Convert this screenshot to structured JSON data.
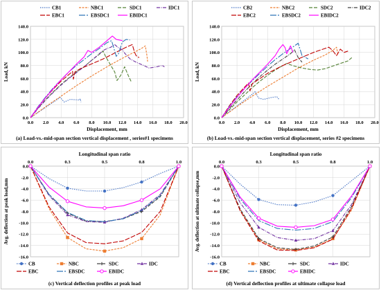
{
  "chart_data": [
    {
      "type": "line",
      "caption": "(a) Load-vs.-mid-span section vertical displacement , series#1 specimens",
      "xlabel": "Displacement, mm",
      "ylabel": "Load, kN",
      "xlim": [
        0.0,
        20.0
      ],
      "ylim": [
        0.0,
        140.0
      ],
      "xticks": [
        "0.0",
        "2.0",
        "4.0",
        "6.0",
        "8.0",
        "10.0",
        "12.0",
        "14.0",
        "16.0",
        "18.0",
        "20.0"
      ],
      "yticks": [
        "0.0",
        "20.0",
        "40.0",
        "60.0",
        "80.0",
        "100.0",
        "120.0",
        "140.0"
      ],
      "grid": true,
      "legend_position": "top",
      "series": [
        {
          "name": "CB1",
          "color": "#4472c4",
          "dash": "1.5,1.5",
          "x": [
            0,
            1,
            2,
            3,
            3.9,
            4.4,
            5.2,
            6.4,
            6.5,
            6.6
          ],
          "y": [
            0,
            8,
            16,
            24,
            31,
            24,
            28,
            27,
            29,
            24
          ]
        },
        {
          "name": "NBC1",
          "color": "#ed7d31",
          "dash": "3,1.5",
          "x": [
            0,
            2,
            4,
            6,
            8,
            10,
            12,
            13.5,
            14.5,
            15,
            15.2,
            15.3
          ],
          "y": [
            0,
            17,
            33,
            49,
            64,
            78,
            91,
            100,
            106,
            110,
            96,
            86
          ]
        },
        {
          "name": "SDC1",
          "color": "#548235",
          "dash": "5,2",
          "x": [
            0,
            1,
            2,
            3,
            4,
            5,
            6,
            7,
            8,
            9,
            9.5,
            9.8,
            10,
            10.5,
            11,
            11.3,
            11.8,
            12.3,
            12.8,
            13.2
          ],
          "y": [
            0,
            15,
            28,
            40,
            51,
            61,
            70,
            78,
            88,
            97,
            102,
            94,
            90,
            80,
            70,
            57,
            65,
            78,
            64,
            54
          ]
        },
        {
          "name": "IDC1",
          "color": "#7030a0",
          "dash": "5,1.5,1,1.5",
          "x": [
            0,
            1,
            2,
            3,
            4,
            5,
            6,
            7,
            8,
            9,
            9.5,
            10,
            10.5,
            11,
            11.5,
            12,
            12.3,
            13,
            13.8,
            14.2,
            14.8,
            15.5,
            16.5,
            17.2,
            17.5
          ],
          "y": [
            0,
            14,
            27,
            39,
            50,
            60,
            69,
            78,
            88,
            98,
            103,
            106,
            108,
            112,
            107,
            104,
            99,
            90,
            85,
            83,
            80,
            76,
            78,
            80,
            78
          ]
        },
        {
          "name": "EBC1",
          "color": "#c00000",
          "dash": "7,2",
          "x": [
            0,
            1,
            2,
            3,
            4,
            5,
            5.5,
            5.6,
            5.8,
            6.5,
            7.5,
            8.5,
            9.5,
            10.5,
            11.5,
            12.5,
            13.3,
            13.6,
            13.8,
            14.2
          ],
          "y": [
            0,
            16,
            31,
            44,
            56,
            66,
            71,
            59,
            70,
            75,
            80,
            85,
            90,
            96,
            102,
            108,
            112,
            100,
            95,
            92
          ]
        },
        {
          "name": "EBSDC1",
          "color": "#2e75b6",
          "dash": "9,2,2,2",
          "x": [
            0,
            1,
            2,
            3,
            4,
            5,
            6,
            7,
            8,
            9,
            10,
            10.6,
            11,
            11.2,
            11.5,
            12,
            12.5,
            13
          ],
          "y": [
            0,
            17,
            32,
            46,
            58,
            70,
            80,
            89,
            98,
            106,
            115,
            118,
            102,
            94,
            98,
            116,
            120,
            119
          ]
        },
        {
          "name": "EBIDC1",
          "color": "#ff00ff",
          "dash": "",
          "x": [
            0,
            1,
            2,
            3,
            4,
            5,
            6,
            7,
            7.5,
            8,
            9,
            10,
            10.7,
            11.2,
            12
          ],
          "y": [
            0,
            16,
            31,
            45,
            58,
            70,
            82,
            93,
            103,
            100,
            108,
            118,
            125,
            120,
            118
          ]
        }
      ]
    },
    {
      "type": "line",
      "caption": "(b) Load-vs.-mid-span section vertical displacement, series  #2 specimens",
      "xlabel": "Displacement, mm",
      "ylabel": "Load, kN",
      "xlim": [
        0.0,
        20.0
      ],
      "ylim": [
        0.0,
        140.0
      ],
      "xticks": [
        "0.0",
        "2.0",
        "4.0",
        "6.0",
        "8.0",
        "10.0",
        "12.0",
        "14.0",
        "16.0",
        "18.0",
        "20.0"
      ],
      "yticks": [
        "0.0",
        "20.0",
        "40.0",
        "60.0",
        "80.0",
        "100.0",
        "120.0",
        "140.0"
      ],
      "grid": true,
      "legend_position": "top",
      "series": [
        {
          "name": "CB2",
          "color": "#4472c4",
          "dash": "1.5,1.5",
          "x": [
            0,
            1,
            2,
            3,
            4,
            4.4,
            4.8,
            5.5,
            6.5,
            7.2,
            7.5
          ],
          "y": [
            0,
            9,
            18,
            27,
            36,
            40,
            30,
            28,
            31,
            32,
            28
          ]
        },
        {
          "name": "NBC2",
          "color": "#ed7d31",
          "dash": "3,1.5",
          "x": [
            0,
            2,
            4,
            6,
            8,
            10,
            12,
            13.5,
            14.5,
            15,
            15.2
          ],
          "y": [
            0,
            17,
            33,
            48,
            62,
            76,
            88,
            96,
            103,
            108,
            96
          ]
        },
        {
          "name": "SDC2",
          "color": "#548235",
          "dash": "5,2",
          "x": [
            0,
            1,
            2,
            3,
            4,
            5,
            6,
            7,
            8,
            8.5,
            9.5,
            10.5,
            11.5,
            12.5,
            13.5,
            14.5,
            15.5,
            16.5,
            17
          ],
          "y": [
            0,
            12,
            24,
            35,
            46,
            56,
            65,
            73,
            80,
            83,
            79,
            76,
            74,
            73,
            75,
            79,
            83,
            87,
            92
          ]
        },
        {
          "name": "IDC2",
          "color": "#404040",
          "dash": "5,1.5,1,1.5",
          "x": [
            0,
            1,
            2,
            3,
            4,
            5,
            6,
            7,
            8,
            9,
            9.5,
            10,
            10.5
          ],
          "y": [
            0,
            14,
            27,
            40,
            52,
            63,
            73,
            82,
            90,
            98,
            104,
            92,
            85
          ]
        },
        {
          "name": "EBC2",
          "color": "#c00000",
          "dash": "7,2",
          "x": [
            0,
            1,
            2,
            3,
            3.5,
            3.7,
            4,
            5,
            6,
            7,
            8,
            9,
            10,
            11,
            12,
            13,
            14,
            14.5,
            15,
            15.5,
            16,
            16.5
          ],
          "y": [
            0,
            18,
            34,
            47,
            53,
            41,
            52,
            60,
            68,
            74,
            80,
            85,
            90,
            95,
            100,
            104,
            108,
            103,
            95,
            105,
            100,
            102
          ]
        },
        {
          "name": "EBSDC2",
          "color": "#2e75b6",
          "dash": "9,2,2,2",
          "x": [
            0,
            1,
            2,
            3,
            4,
            5,
            6,
            7,
            8,
            9,
            9.5,
            10,
            10.5,
            11.3
          ],
          "y": [
            0,
            17,
            32,
            45,
            57,
            68,
            79,
            89,
            98,
            106,
            110,
            114,
            95,
            90
          ]
        },
        {
          "name": "EBIDC2",
          "color": "#ff00ff",
          "dash": "",
          "x": [
            0,
            1,
            2,
            3,
            4,
            5,
            6,
            7,
            7.5,
            8,
            8.3,
            8.5,
            9,
            9.3
          ],
          "y": [
            0,
            16,
            31,
            45,
            58,
            70,
            82,
            95,
            105,
            112,
            107,
            98,
            110,
            100
          ]
        }
      ]
    },
    {
      "type": "line",
      "caption": "(c) Vertical deflection profiles at peak load",
      "xlabel": "Longitudinal span ratio",
      "ylabel": "Avg. deflection at peak load,mm",
      "xlim": [
        0.0,
        1.0
      ],
      "ylim": [
        -16.0,
        0.0
      ],
      "xticks": [
        "0.0",
        "0.3",
        "0.5",
        "0.8",
        "1.0"
      ],
      "yticks": [
        "0.0",
        "-2.0",
        "-4.0",
        "-6.0",
        "-8.0",
        "-10.0",
        "-12.0",
        "-14.0",
        "-16.0"
      ],
      "grid": true,
      "legend_position": "bottom",
      "series": [
        {
          "name": "CB",
          "color": "#4472c4",
          "dash": "1.5,1.5",
          "marker": "circle",
          "x": [
            0,
            0.125,
            0.25,
            0.375,
            0.5,
            0.625,
            0.75,
            0.875,
            1
          ],
          "y": [
            0,
            -2.2,
            -3.9,
            -4.4,
            -4.4,
            -3.8,
            -2.8,
            -1.3,
            0
          ]
        },
        {
          "name": "NBC",
          "color": "#ed7d31",
          "dash": "3,1.5",
          "marker": "square",
          "x": [
            0,
            0.125,
            0.25,
            0.375,
            0.5,
            0.625,
            0.75,
            0.875,
            1
          ],
          "y": [
            0,
            -7.5,
            -12.6,
            -14.6,
            -15.0,
            -14.4,
            -12.8,
            -8.6,
            0
          ]
        },
        {
          "name": "SDC",
          "color": "#404040",
          "dash": "5,2",
          "marker": "plus",
          "x": [
            0,
            0.125,
            0.25,
            0.375,
            0.5,
            0.625,
            0.75,
            0.875,
            1
          ],
          "y": [
            0,
            -5.0,
            -8.3,
            -9.7,
            -9.8,
            -9.3,
            -8.0,
            -5.4,
            0
          ]
        },
        {
          "name": "IDC",
          "color": "#7030a0",
          "dash": "5,1.5,1,1.5",
          "marker": "triangle",
          "x": [
            0,
            0.125,
            0.25,
            0.375,
            0.5,
            0.625,
            0.75,
            0.875,
            1
          ],
          "y": [
            0,
            -5.2,
            -8.6,
            -9.8,
            -9.9,
            -9.2,
            -7.7,
            -5.0,
            0
          ]
        },
        {
          "name": "EBC",
          "color": "#c00000",
          "dash": "7,2",
          "marker": "none",
          "x": [
            0,
            0.125,
            0.25,
            0.375,
            0.5,
            0.625,
            0.75,
            0.875,
            1
          ],
          "y": [
            0,
            -7.2,
            -11.8,
            -13.5,
            -13.7,
            -13.2,
            -11.7,
            -8.0,
            0
          ]
        },
        {
          "name": "EBSDC",
          "color": "#2e75b6",
          "dash": "9,2,2,2",
          "marker": "none",
          "x": [
            0,
            0.125,
            0.25,
            0.375,
            0.5,
            0.625,
            0.75,
            0.875,
            1
          ],
          "y": [
            0,
            -5.0,
            -8.2,
            -9.6,
            -9.8,
            -9.3,
            -7.8,
            -5.2,
            0
          ]
        },
        {
          "name": "EBIDC",
          "color": "#ff00ff",
          "dash": "",
          "marker": "circle-open",
          "x": [
            0,
            0.125,
            0.25,
            0.375,
            0.5,
            0.625,
            0.75,
            0.875,
            1
          ],
          "y": [
            0,
            -3.7,
            -6.2,
            -7.2,
            -7.4,
            -7.0,
            -6.0,
            -4.0,
            0
          ]
        }
      ]
    },
    {
      "type": "line",
      "caption": "(d) Vertical deflection profiles at  ultimate collapse load",
      "xlabel": "Longitudinal span ratio",
      "ylabel": "Avg. deflection at ultimate collapse,mm",
      "xlim": [
        0.0,
        1.0
      ],
      "ylim": [
        -16.0,
        0.0
      ],
      "xticks": [
        "0.0",
        "0.3",
        "0.5",
        "0.8",
        "1.0"
      ],
      "yticks": [
        "0.0",
        "-2.0",
        "-4.0",
        "-6.0",
        "-8.0",
        "-10.0",
        "-12.0",
        "-14.0",
        "-16.0"
      ],
      "grid": true,
      "legend_position": "bottom",
      "series": [
        {
          "name": "CB",
          "color": "#4472c4",
          "dash": "1.5,1.5",
          "marker": "circle",
          "x": [
            0,
            0.125,
            0.25,
            0.375,
            0.5,
            0.625,
            0.75,
            0.875,
            1
          ],
          "y": [
            0,
            -3.2,
            -5.9,
            -6.8,
            -6.9,
            -6.3,
            -5.2,
            -2.6,
            0
          ]
        },
        {
          "name": "NBC",
          "color": "#ed7d31",
          "dash": "3,1.5",
          "marker": "square",
          "x": [
            0,
            0.125,
            0.25,
            0.375,
            0.5,
            0.625,
            0.75,
            0.875,
            1
          ],
          "y": [
            0,
            -7.8,
            -13.0,
            -14.6,
            -14.8,
            -14.3,
            -12.8,
            -7.8,
            0
          ]
        },
        {
          "name": "SDC",
          "color": "#404040",
          "dash": "5,2",
          "marker": "plus",
          "x": [
            0,
            0.125,
            0.25,
            0.375,
            0.5,
            0.625,
            0.75,
            0.875,
            1
          ],
          "y": [
            0,
            -7.6,
            -12.8,
            -14.4,
            -14.7,
            -14.1,
            -12.5,
            -7.2,
            0
          ]
        },
        {
          "name": "IDC",
          "color": "#7030a0",
          "dash": "5,1.5,1,1.5",
          "marker": "triangle",
          "x": [
            0,
            0.125,
            0.25,
            0.375,
            0.5,
            0.625,
            0.75,
            0.875,
            1
          ],
          "y": [
            0,
            -6.5,
            -10.8,
            -12.6,
            -13.1,
            -12.8,
            -11.4,
            -6.8,
            0
          ]
        },
        {
          "name": "EBC",
          "color": "#c00000",
          "dash": "7,2",
          "marker": "none",
          "x": [
            0,
            0.125,
            0.25,
            0.375,
            0.5,
            0.625,
            0.75,
            0.875,
            1
          ],
          "y": [
            0,
            -7.9,
            -13.2,
            -14.8,
            -14.9,
            -14.4,
            -12.9,
            -7.5,
            0
          ]
        },
        {
          "name": "EBSDC",
          "color": "#2e75b6",
          "dash": "9,2,2,2",
          "marker": "none",
          "x": [
            0,
            0.125,
            0.25,
            0.375,
            0.5,
            0.625,
            0.75,
            0.875,
            1
          ],
          "y": [
            0,
            -5.8,
            -9.6,
            -11.0,
            -11.3,
            -11.0,
            -9.8,
            -5.6,
            0
          ]
        },
        {
          "name": "EBIDC",
          "color": "#ff00ff",
          "dash": "",
          "marker": "circle-open",
          "x": [
            0,
            0.125,
            0.25,
            0.375,
            0.5,
            0.625,
            0.75,
            0.875,
            1
          ],
          "y": [
            0,
            -5.5,
            -9.2,
            -10.6,
            -10.8,
            -10.5,
            -9.4,
            -5.3,
            0
          ]
        }
      ]
    }
  ]
}
